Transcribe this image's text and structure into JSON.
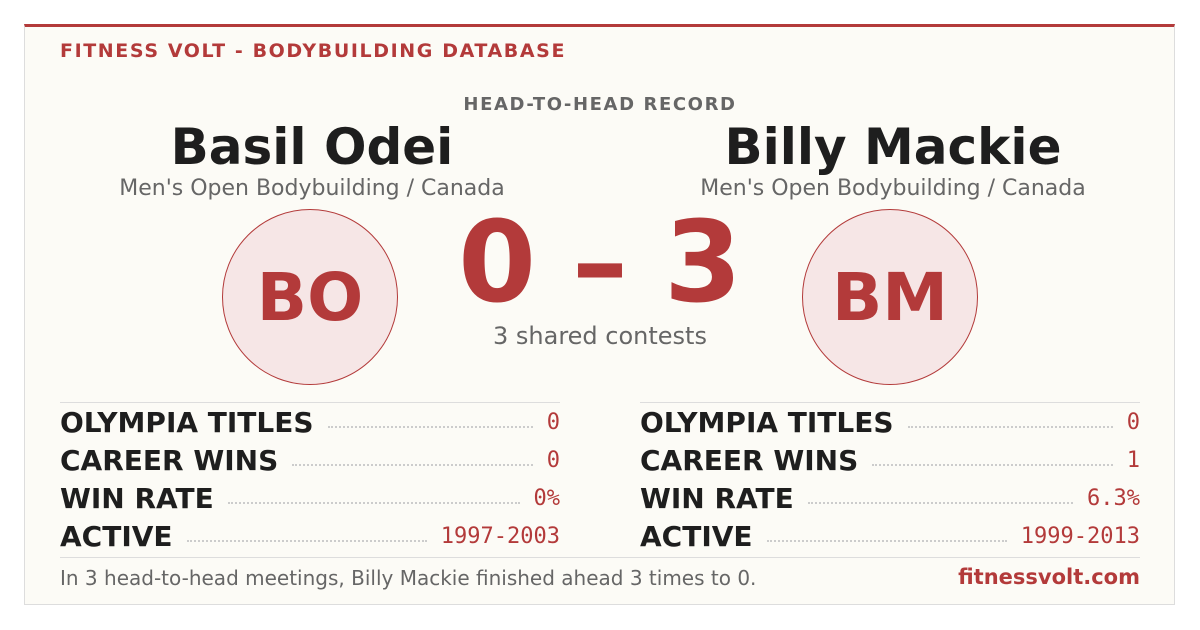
{
  "header": {
    "brand": "FITNESS VOLT - BODYBUILDING DATABASE",
    "section": "HEAD-TO-HEAD RECORD"
  },
  "left": {
    "name": "Basil Odei",
    "division": "Men's Open Bodybuilding / Canada",
    "initials": "BO",
    "stats": [
      {
        "label": "OLYMPIA TITLES",
        "value": "0"
      },
      {
        "label": "CAREER WINS",
        "value": "0"
      },
      {
        "label": "WIN RATE",
        "value": "0%"
      },
      {
        "label": "ACTIVE",
        "value": "1997-2003"
      }
    ]
  },
  "right": {
    "name": "Billy Mackie",
    "division": "Men's Open Bodybuilding / Canada",
    "initials": "BM",
    "stats": [
      {
        "label": "OLYMPIA TITLES",
        "value": "0"
      },
      {
        "label": "CAREER WINS",
        "value": "1"
      },
      {
        "label": "WIN RATE",
        "value": "6.3%"
      },
      {
        "label": "ACTIVE",
        "value": "1999-2013"
      }
    ]
  },
  "score": {
    "left": 0,
    "separator": "–",
    "right": 3,
    "caption": "3 shared contests"
  },
  "footer": {
    "summary": "In 3 head-to-head meetings, Billy Mackie finished ahead 3 times to 0.",
    "site": "fitnessvolt.com"
  }
}
